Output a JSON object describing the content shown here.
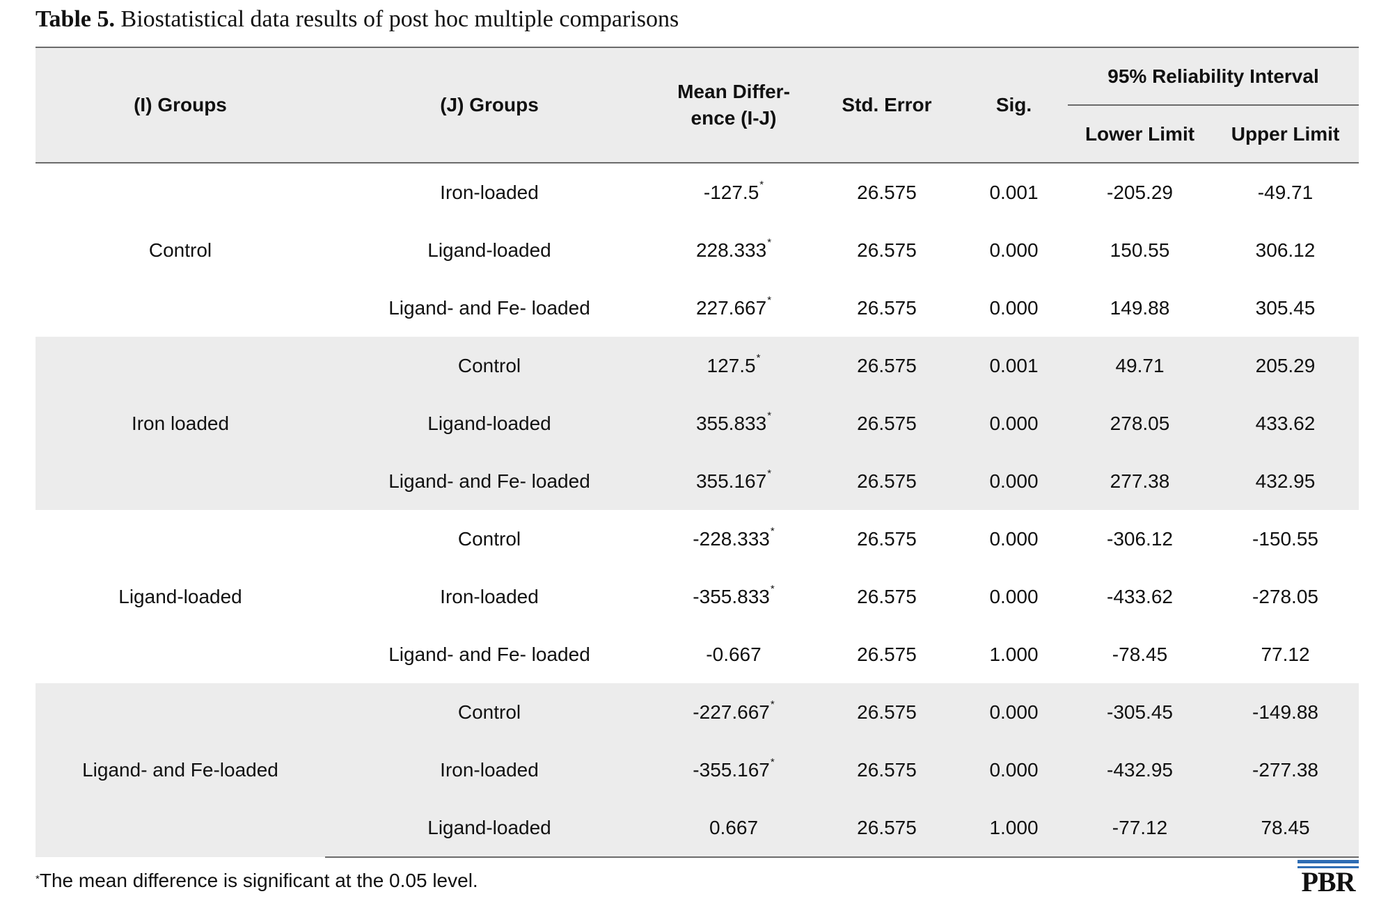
{
  "caption": {
    "label": "Table 5.",
    "text": " Biostatistical data results of post hoc multiple comparisons"
  },
  "header": {
    "i_groups": "(I) Groups",
    "j_groups": "(J) Groups",
    "mean_diff_line1": "Mean Differ-",
    "mean_diff_line2": "ence (I-J)",
    "std_error": "Std. Error",
    "sig": "Sig.",
    "interval": "95% Reliability Interval",
    "lower": "Lower Limit",
    "upper": "Upper Limit"
  },
  "groups": [
    {
      "name": "Control",
      "rows": [
        {
          "j": "Iron-loaded",
          "md": "-127.5",
          "star": "*",
          "se": "26.575",
          "sig": "0.001",
          "lower": "-205.29",
          "upper": "-49.71"
        },
        {
          "j": "Ligand-loaded",
          "md": "228.333",
          "star": "*",
          "se": "26.575",
          "sig": "0.000",
          "lower": "150.55",
          "upper": "306.12"
        },
        {
          "j": "Ligand- and Fe- loaded",
          "md": "227.667",
          "star": "*",
          "se": "26.575",
          "sig": "0.000",
          "lower": "149.88",
          "upper": "305.45"
        }
      ]
    },
    {
      "name": "Iron loaded",
      "rows": [
        {
          "j": "Control",
          "md": "127.5",
          "star": "*",
          "se": "26.575",
          "sig": "0.001",
          "lower": "49.71",
          "upper": "205.29"
        },
        {
          "j": "Ligand-loaded",
          "md": "355.833",
          "star": "*",
          "se": "26.575",
          "sig": "0.000",
          "lower": "278.05",
          "upper": "433.62"
        },
        {
          "j": "Ligand- and Fe- loaded",
          "md": "355.167",
          "star": "*",
          "se": "26.575",
          "sig": "0.000",
          "lower": "277.38",
          "upper": "432.95"
        }
      ]
    },
    {
      "name": "Ligand-loaded",
      "rows": [
        {
          "j": "Control",
          "md": "-228.333",
          "star": "*",
          "se": "26.575",
          "sig": "0.000",
          "lower": "-306.12",
          "upper": "-150.55"
        },
        {
          "j": "Iron-loaded",
          "md": "-355.833",
          "star": "*",
          "se": "26.575",
          "sig": "0.000",
          "lower": "-433.62",
          "upper": "-278.05"
        },
        {
          "j": "Ligand- and Fe- loaded",
          "md": "-0.667",
          "star": "",
          "se": "26.575",
          "sig": "1.000",
          "lower": "-78.45",
          "upper": "77.12"
        }
      ]
    },
    {
      "name": "Ligand- and Fe-loaded",
      "rows": [
        {
          "j": "Control",
          "md": "-227.667",
          "star": "*",
          "se": "26.575",
          "sig": "0.000",
          "lower": "-305.45",
          "upper": "-149.88"
        },
        {
          "j": "Iron-loaded",
          "md": "-355.167",
          "star": "*",
          "se": "26.575",
          "sig": "0.000",
          "lower": "-432.95",
          "upper": "-277.38"
        },
        {
          "j": "Ligand-loaded",
          "md": "0.667",
          "star": "",
          "se": "26.575",
          "sig": "1.000",
          "lower": "-77.12",
          "upper": "78.45"
        }
      ]
    }
  ],
  "footnote": {
    "mark": "*",
    "text": "The mean difference is significant at the 0.05 level."
  },
  "logo": {
    "text": "PBR",
    "color": "#2e6db4"
  },
  "colors": {
    "shaded_band": "#ececec",
    "rule": "#6b6b6b"
  }
}
